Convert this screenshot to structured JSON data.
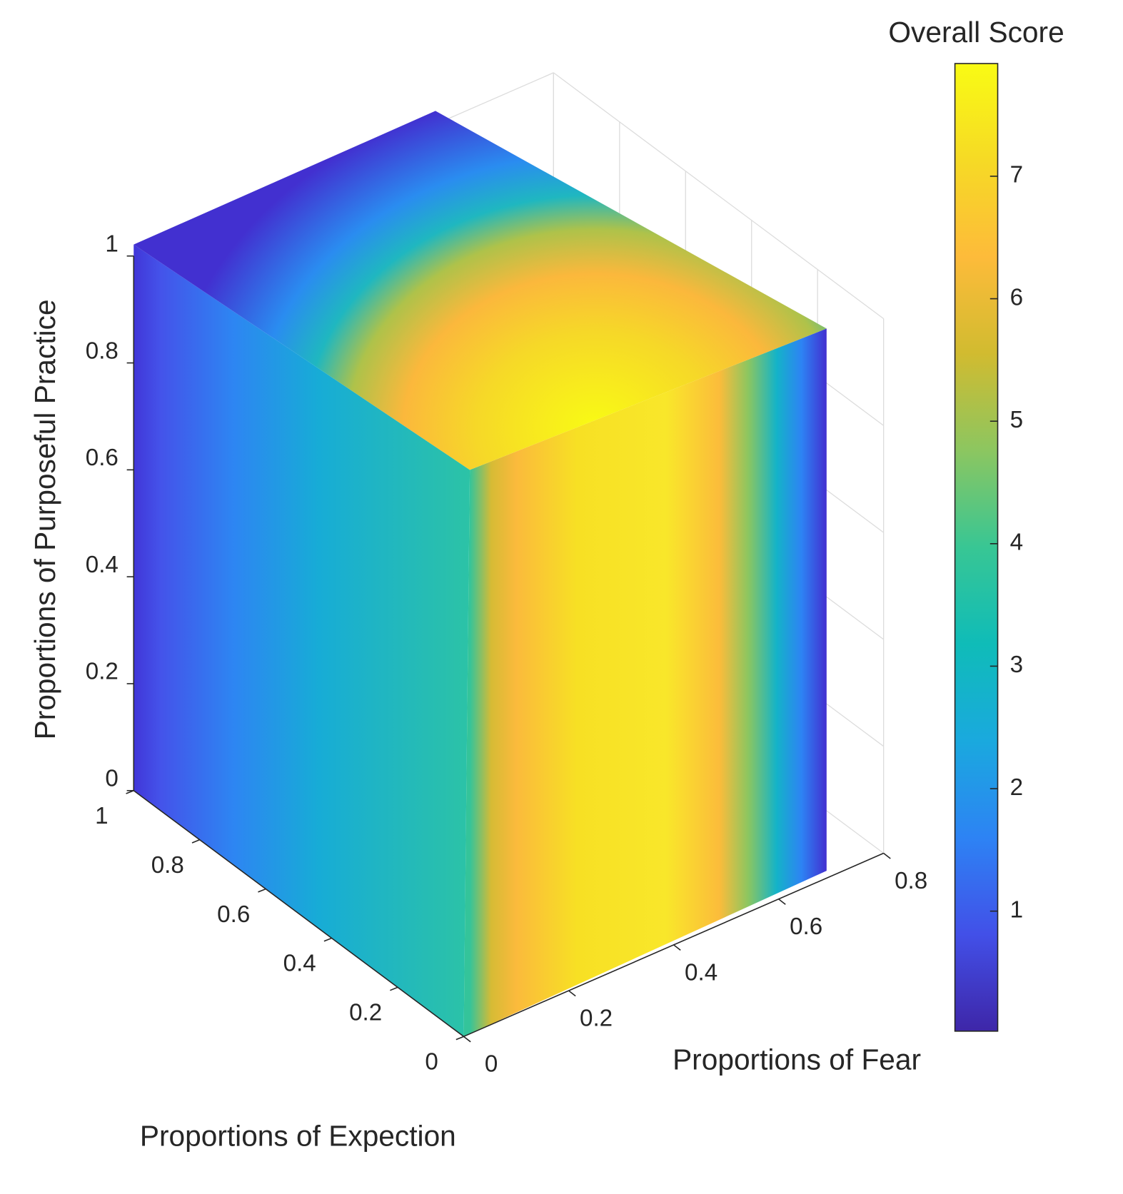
{
  "chart_data": {
    "type": "volume",
    "xlabel": "Proportions of Fear",
    "ylabel": "Proportions of Expection",
    "zlabel": "Proportions of Purposeful Practice",
    "xlim": [
      0,
      0.8
    ],
    "ylim": [
      0,
      1
    ],
    "zlim": [
      0,
      1
    ],
    "xticks": [
      0,
      0.2,
      0.4,
      0.6,
      0.8
    ],
    "yticks": [
      0,
      0.2,
      0.4,
      0.6,
      0.8,
      1
    ],
    "zticks": [
      0,
      0.2,
      0.4,
      0.6,
      0.8,
      1
    ],
    "grid": true,
    "colorbar": {
      "title": "Overall Score",
      "clim": [
        0.02,
        7.92
      ],
      "ticks": [
        1,
        2,
        3,
        4,
        5,
        6,
        7
      ],
      "colormap": [
        "#3e26a8",
        "#4250e8",
        "#2d83f4",
        "#1aa9de",
        "#0fbcb8",
        "#38c694",
        "#8cc660",
        "#d1bb30",
        "#fdbb3a",
        "#f6da25",
        "#f9fb14"
      ]
    }
  }
}
